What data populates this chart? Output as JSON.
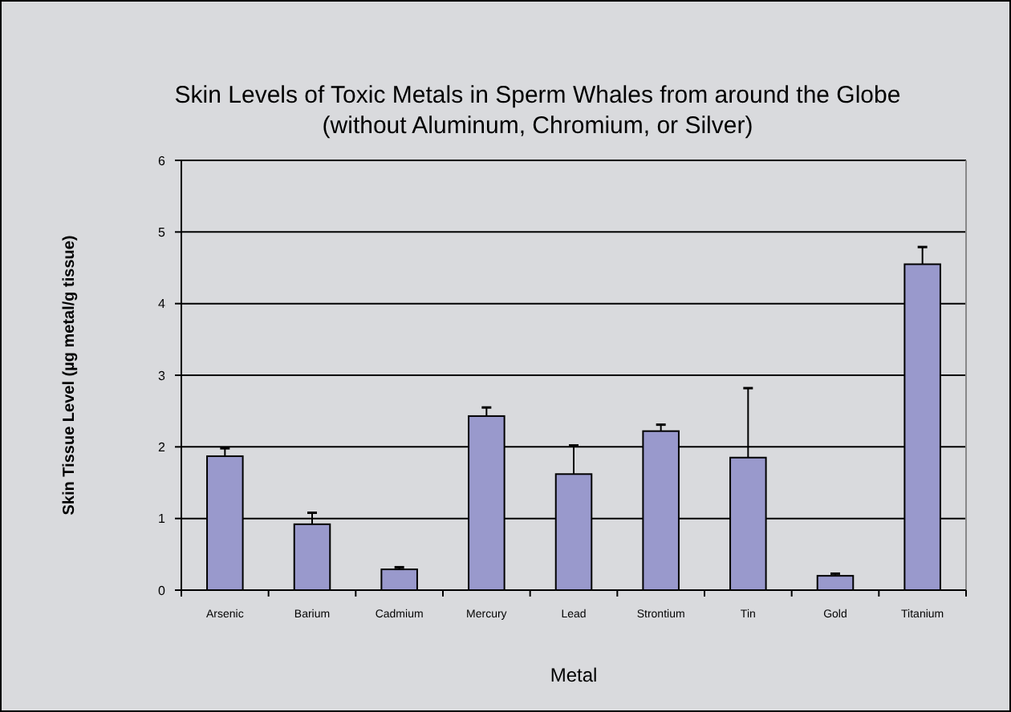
{
  "chart_data": {
    "type": "bar",
    "title": "Skin Levels of Toxic Metals in Sperm Whales from around the Globe",
    "subtitle": "(without Aluminum, Chromium, or Silver)",
    "xlabel": "Metal",
    "ylabel": "Skin Tissue Level (µg metal/g tissue)",
    "categories": [
      "Arsenic",
      "Barium",
      "Cadmium",
      "Mercury",
      "Lead",
      "Strontium",
      "Tin",
      "Gold",
      "Titanium"
    ],
    "values": [
      1.87,
      0.92,
      0.29,
      2.43,
      1.62,
      2.22,
      1.85,
      0.2,
      4.55
    ],
    "errors": [
      [
        1.87,
        1.98
      ],
      [
        0.92,
        1.08
      ],
      [
        0.29,
        0.32
      ],
      [
        2.43,
        2.55
      ],
      [
        1.62,
        2.02
      ],
      [
        2.22,
        2.31
      ],
      [
        1.85,
        2.82
      ],
      [
        0.2,
        0.23
      ],
      [
        4.55,
        4.79
      ]
    ],
    "color": "#9999cc",
    "ylim": [
      0,
      6
    ],
    "yticks": [
      0,
      1,
      2,
      3,
      4,
      5,
      6
    ],
    "grid": "y"
  }
}
